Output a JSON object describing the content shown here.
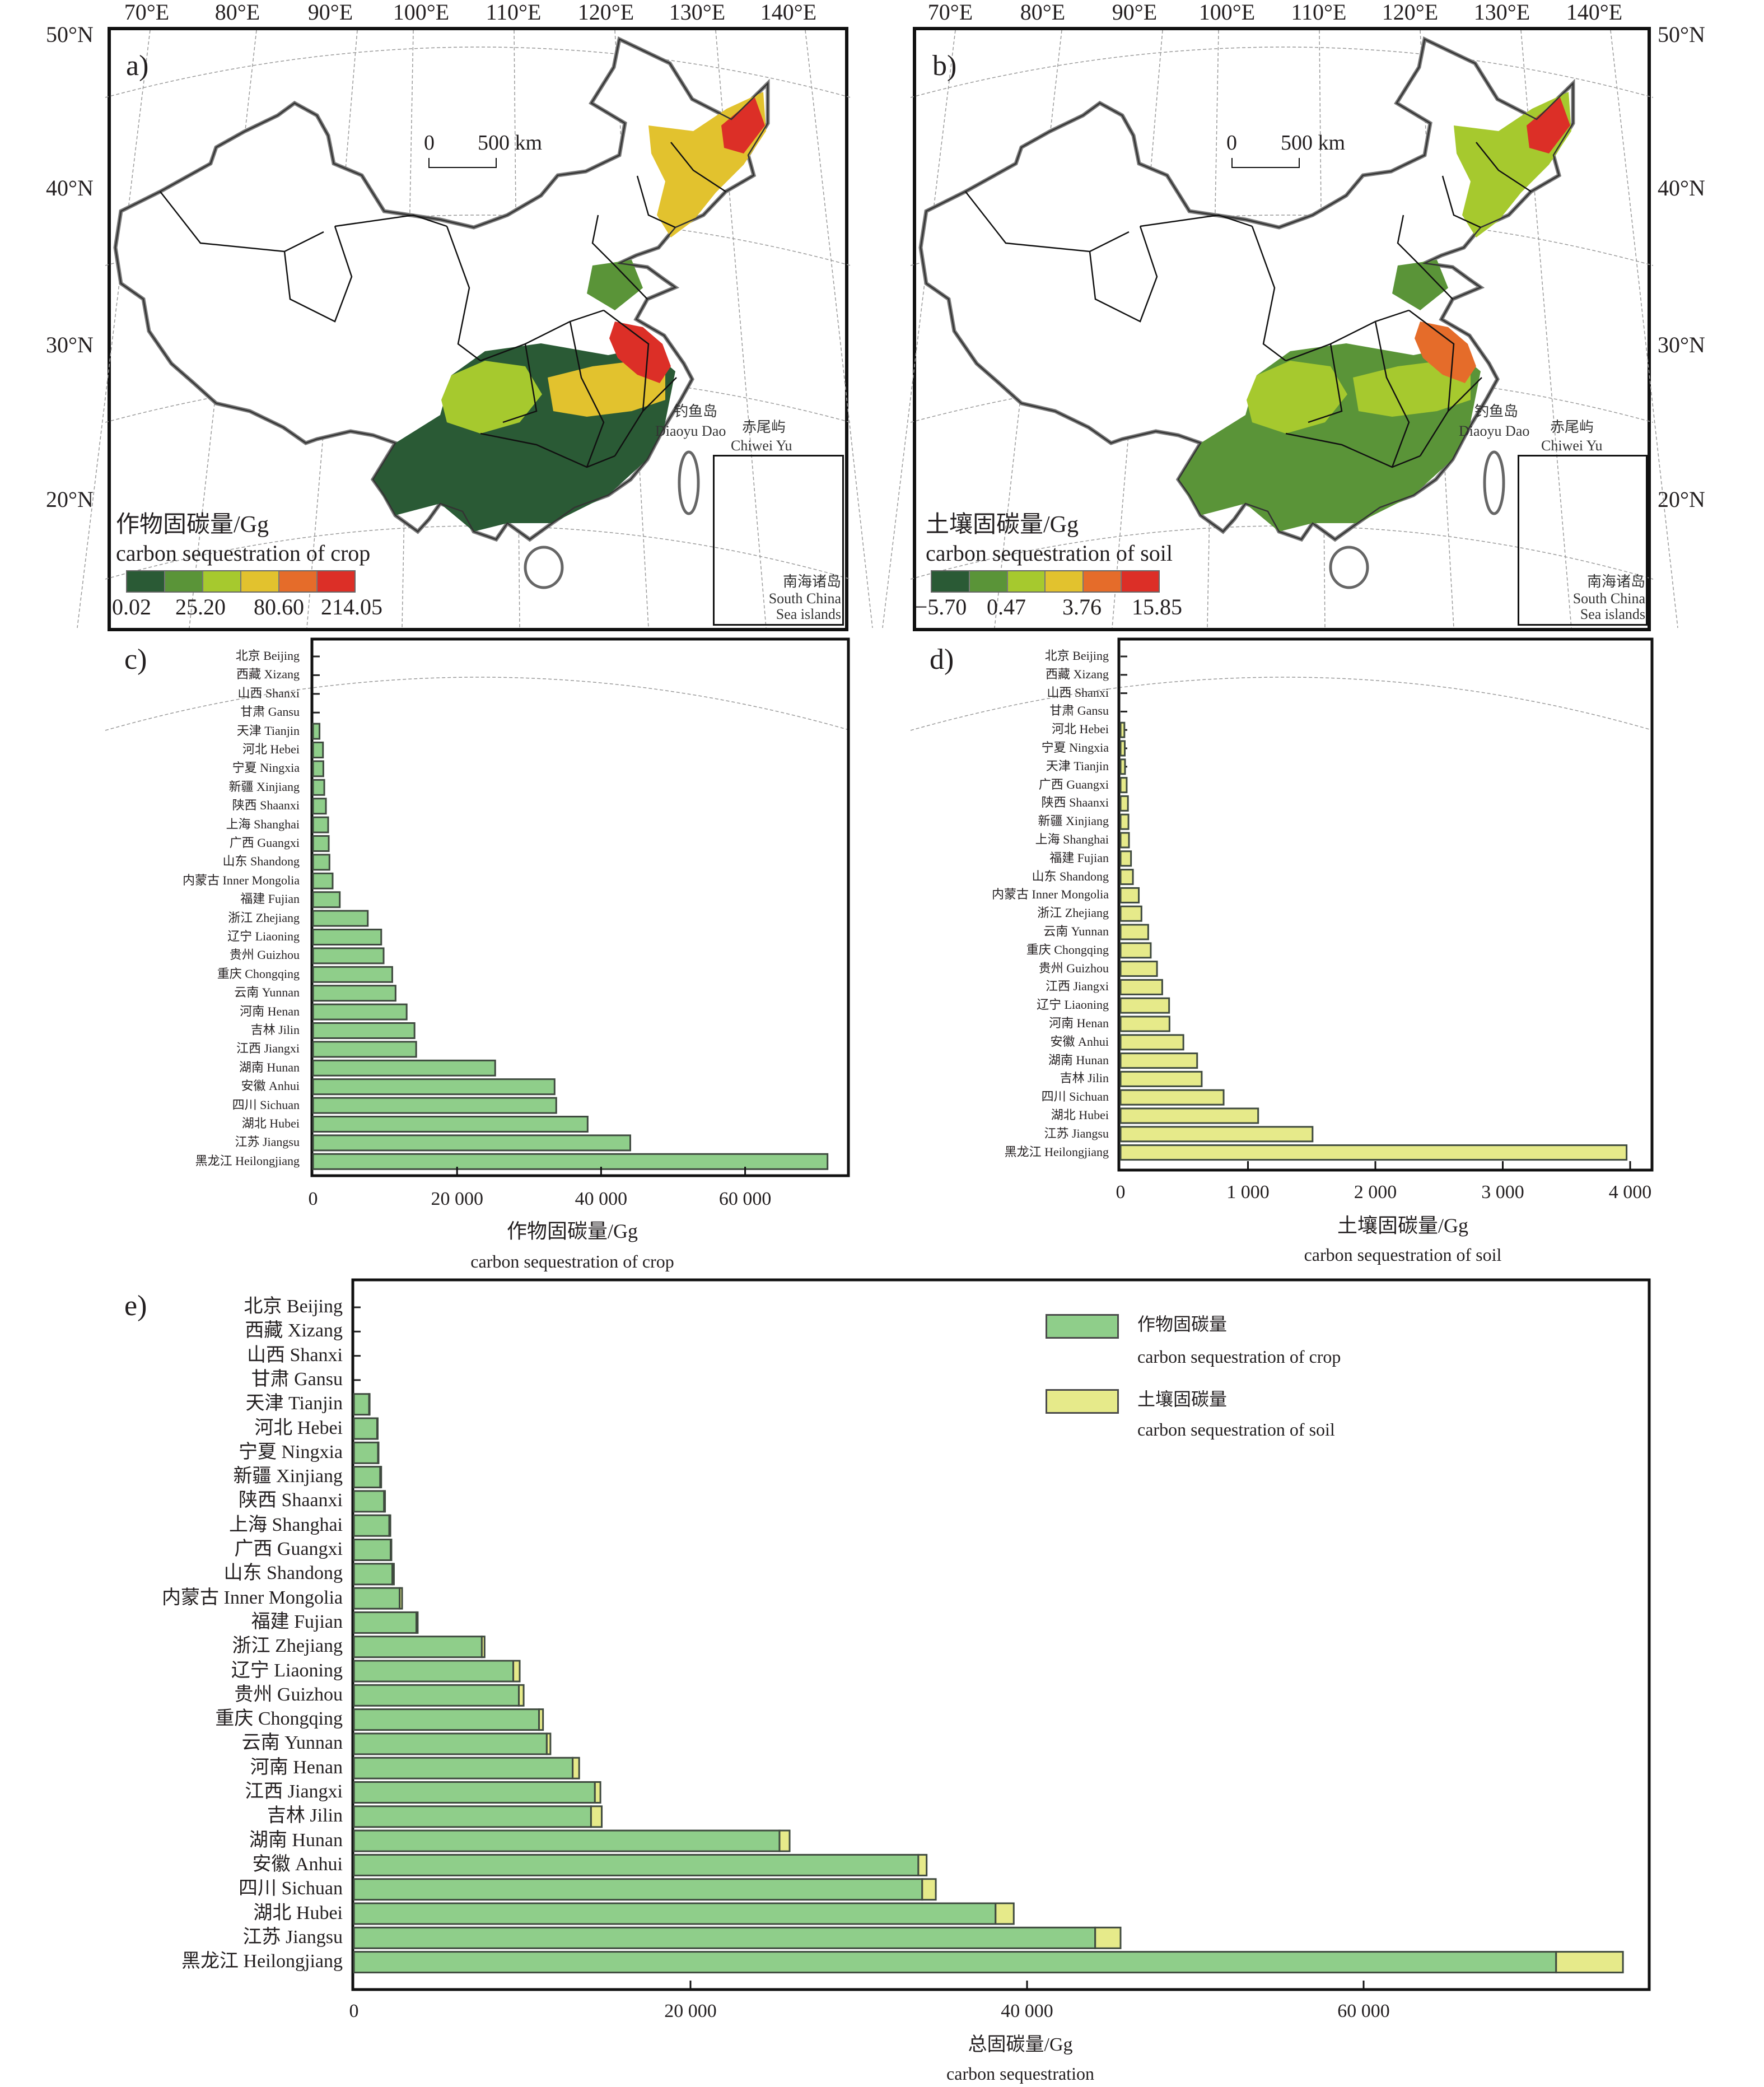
{
  "maps": {
    "lon_labels": [
      "70°E",
      "80°E",
      "90°E",
      "100°E",
      "110°E",
      "120°E",
      "130°E",
      "140°E"
    ],
    "lat_labels": [
      "50°N",
      "40°N",
      "30°N",
      "20°N"
    ],
    "scale_bar": {
      "zero": "0",
      "distance": "500 km"
    },
    "island_labels": {
      "diaoyu_cn": "钓鱼岛",
      "diaoyu_en": "Diaoyu Dao",
      "chiwei_cn": "赤尾屿",
      "chiwei_en": "Chiwei Yu",
      "scs_cn": "南海诸岛",
      "scs_en1": "South China",
      "scs_en2": "Sea islands"
    },
    "a": {
      "letter": "a)",
      "legend_title": "作物固碳量/Gg",
      "legend_subtitle": "carbon sequestration of crop",
      "legend_values": [
        "0.02",
        "25.20",
        "80.60",
        "214.05"
      ]
    },
    "b": {
      "letter": "b)",
      "legend_title": "土壤固碳量/Gg",
      "legend_subtitle": "carbon sequestration of soil",
      "legend_values": [
        "−5.70",
        "0.47",
        "3.76",
        "15.85"
      ]
    },
    "legend_colors": [
      "#2a5a35",
      "#5a9438",
      "#a6c92e",
      "#e2c22e",
      "#e56c2a",
      "#dc2f27"
    ]
  },
  "chart_data": [
    {
      "id": "c",
      "type": "bar",
      "orientation": "horizontal",
      "panel_letter": "c)",
      "xlabel": "作物固碳量/Gg",
      "xlabel_sub": "carbon sequestration of crop",
      "xlim": [
        0,
        74400
      ],
      "xticks": [
        0,
        20000,
        40000,
        60000
      ],
      "xtick_labels": [
        "0",
        "20 000",
        "40 000",
        "60 000"
      ],
      "color": "#8fce8a",
      "categories": [
        "北京 Beijing",
        "西藏 Xizang",
        "山西 Shanxi",
        "甘肃 Gansu",
        "天津 Tianjin",
        "河北 Hebei",
        "宁夏 Ningxia",
        "新疆 Xinjiang",
        "陕西 Shaanxi",
        "上海 Shanghai",
        "广西 Guangxi",
        "山东 Shandong",
        "内蒙古 Inner Mongolia",
        "福建 Fujian",
        "浙江 Zhejiang",
        "辽宁 Liaoning",
        "贵州 Guizhou",
        "重庆 Chongqing",
        "云南 Yunnan",
        "河南 Henan",
        "吉林 Jilin",
        "江西 Jiangxi",
        "湖南 Hunan",
        "安徽 Anhui",
        "四川 Sichuan",
        "湖北 Hubei",
        "江苏 Jiangsu",
        "黑龙江 Heilongjiang"
      ],
      "values": [
        0,
        0,
        0,
        0,
        900,
        1380,
        1430,
        1560,
        1790,
        2100,
        2180,
        2280,
        2720,
        3710,
        7600,
        9470,
        9800,
        11000,
        11460,
        13000,
        14090,
        14320,
        25290,
        33540,
        33770,
        38130,
        44050,
        71440
      ]
    },
    {
      "id": "d",
      "type": "bar",
      "orientation": "horizontal",
      "panel_letter": "d)",
      "xlabel": "土壤固碳量/Gg",
      "xlabel_sub": "carbon sequestration of soil",
      "xlim": [
        0,
        4170
      ],
      "xticks": [
        0,
        1000,
        2000,
        3000,
        4000
      ],
      "xtick_labels": [
        "0",
        "1 000",
        "2 000",
        "3 000",
        "4 000"
      ],
      "color": "#e6ea8a",
      "categories": [
        "北京 Beijing",
        "西藏 Xizang",
        "山西 Shanxi",
        "甘肃 Gansu",
        "河北 Hebei",
        "宁夏 Ningxia",
        "天津 Tianjin",
        "广西 Guangxi",
        "陕西 Shaanxi",
        "新疆 Xinjiang",
        "上海 Shanghai",
        "福建 Fujian",
        "山东 Shandong",
        "内蒙古 Inner Mongolia",
        "浙江 Zhejiang",
        "云南 Yunnan",
        "重庆 Chongqing",
        "贵州 Guizhou",
        "江西 Jiangxi",
        "辽宁 Liaoning",
        "河南 Henan",
        "安徽 Anhui",
        "湖南 Hunan",
        "吉林 Jilin",
        "四川 Sichuan",
        "湖北 Hubei",
        "江苏 Jiangsu",
        "黑龙江 Heilongjiang"
      ],
      "values": [
        0,
        0,
        0,
        0,
        30,
        33,
        35,
        48,
        58,
        62,
        66,
        82,
        97,
        143,
        164,
        217,
        237,
        286,
        327,
        381,
        384,
        493,
        601,
        637,
        809,
        1080,
        1507,
        3972
      ]
    },
    {
      "id": "e",
      "type": "bar",
      "orientation": "horizontal",
      "stacked": true,
      "panel_letter": "e)",
      "xlabel": "总固碳量/Gg",
      "xlabel_sub": "carbon sequestration",
      "xlim": [
        0,
        77000
      ],
      "xticks": [
        0,
        20000,
        40000,
        60000
      ],
      "xtick_labels": [
        "0",
        "20 000",
        "40 000",
        "60 000"
      ],
      "legend": "top-right",
      "categories": [
        "北京 Beijing",
        "西藏 Xizang",
        "山西 Shanxi",
        "甘肃 Gansu",
        "天津 Tianjin",
        "河北 Hebei",
        "宁夏 Ningxia",
        "新疆 Xinjiang",
        "陕西 Shaanxi",
        "上海 Shanghai",
        "广西 Guangxi",
        "山东 Shandong",
        "内蒙古 Inner Mongolia",
        "福建 Fujian",
        "浙江 Zhejiang",
        "辽宁 Liaoning",
        "贵州 Guizhou",
        "重庆 Chongqing",
        "云南 Yunnan",
        "河南 Henan",
        "江西 Jiangxi",
        "吉林 Jilin",
        "湖南 Hunan",
        "安徽 Anhui",
        "四川 Sichuan",
        "湖北 Hubei",
        "江苏 Jiangsu",
        "黑龙江 Heilongjiang"
      ],
      "series": [
        {
          "name": "作物固碳量",
          "name_en": "carbon sequestration of crop",
          "color": "#8fce8a",
          "values": [
            0,
            0,
            0,
            0,
            900,
            1380,
            1430,
            1560,
            1790,
            2100,
            2180,
            2280,
            2720,
            3710,
            7600,
            9470,
            9800,
            11000,
            11460,
            13000,
            14320,
            14090,
            25290,
            33540,
            33770,
            38130,
            44050,
            71440
          ]
        },
        {
          "name": "土壤固碳量",
          "name_en": "carbon sequestration of soil",
          "color": "#e6ea8a",
          "values": [
            0,
            0,
            0,
            0,
            35,
            30,
            33,
            62,
            58,
            66,
            48,
            97,
            143,
            82,
            164,
            381,
            286,
            237,
            217,
            384,
            327,
            637,
            601,
            493,
            809,
            1080,
            1507,
            3972
          ]
        }
      ]
    }
  ]
}
